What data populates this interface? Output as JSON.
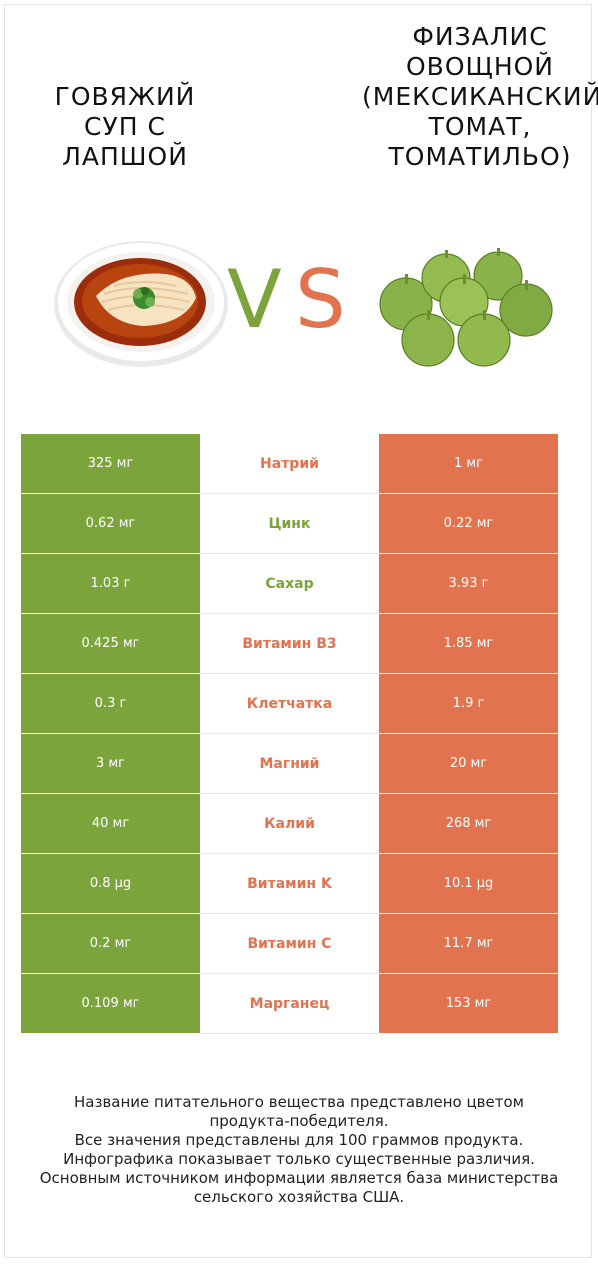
{
  "left_food": {
    "title": "ГОВЯЖИЙ\nСУП С\nЛАПШОЙ",
    "color": "#7ca43c"
  },
  "right_food": {
    "title": "ФИЗАЛИС\nОВОЩНОЙ\n(МЕКСИКАНСКИЙ\nТОМАТ,\nТОМАТИЛЬО)",
    "color": "#e2734f"
  },
  "vs": {
    "v": "V",
    "s": "S"
  },
  "rows": [
    {
      "left": "325 мг",
      "nutrient": "Натрий",
      "right": "1 мг",
      "winner": "right"
    },
    {
      "left": "0.62 мг",
      "nutrient": "Цинк",
      "right": "0.22 мг",
      "winner": "left"
    },
    {
      "left": "1.03 г",
      "nutrient": "Сахар",
      "right": "3.93 г",
      "winner": "left"
    },
    {
      "left": "0.425 мг",
      "nutrient": "Витамин B3",
      "right": "1.85 мг",
      "winner": "right"
    },
    {
      "left": "0.3 г",
      "nutrient": "Клетчатка",
      "right": "1.9 г",
      "winner": "right"
    },
    {
      "left": "3 мг",
      "nutrient": "Магний",
      "right": "20 мг",
      "winner": "right"
    },
    {
      "left": "40 мг",
      "nutrient": "Калий",
      "right": "268 мг",
      "winner": "right"
    },
    {
      "left": "0.8 µg",
      "nutrient": "Витамин K",
      "right": "10.1 µg",
      "winner": "right"
    },
    {
      "left": "0.2 мг",
      "nutrient": "Витамин C",
      "right": "11.7 мг",
      "winner": "right"
    },
    {
      "left": "0.109 мг",
      "nutrient": "Марганец",
      "right": "153 мг",
      "winner": "right"
    }
  ],
  "footer": [
    "Название питательного вещества представлено цветом",
    "продукта-победителя.",
    "Все значения представлены для 100 граммов продукта.",
    "Инфографика показывает только существенные различия.",
    "Основным источником информации является база министерства",
    "сельского хозяйства США."
  ]
}
